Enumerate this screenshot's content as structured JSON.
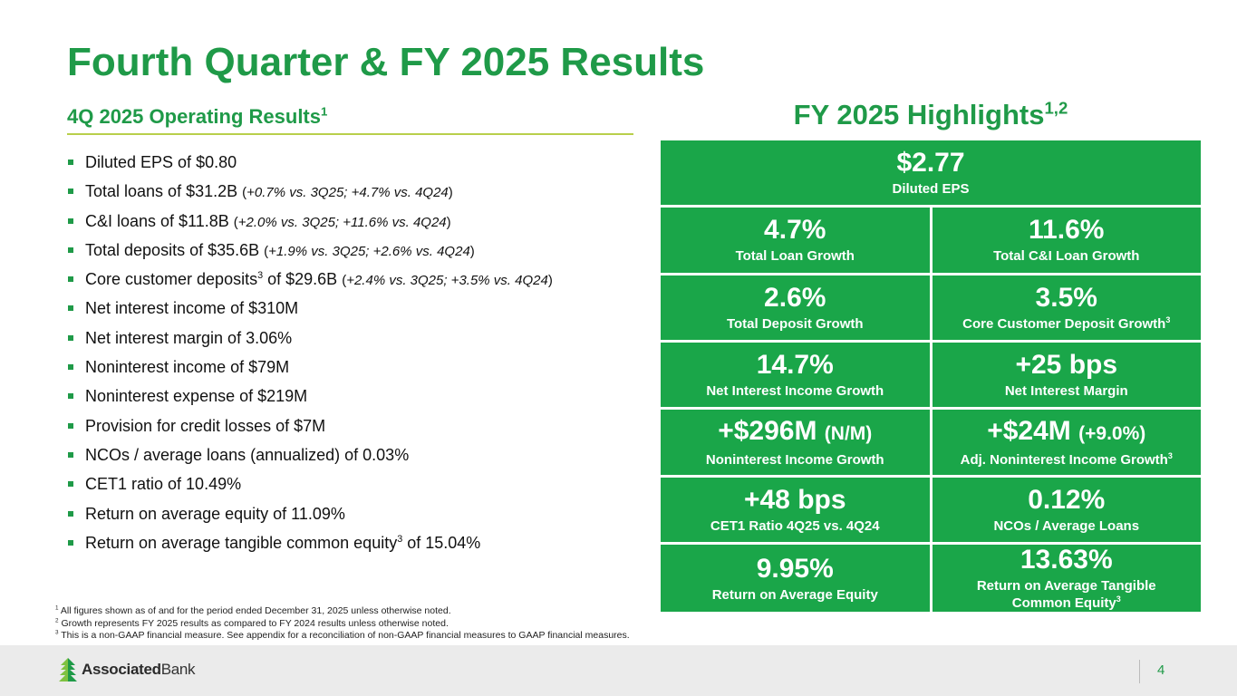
{
  "title": "Fourth Quarter & FY 2025 Results",
  "left": {
    "heading": "4Q 2025 Operating Results",
    "heading_sup": "1",
    "bullets": [
      {
        "main": "Diluted EPS of $0.80"
      },
      {
        "main": "Total loans of $31.2B",
        "open": "(",
        "detail": "+0.7% vs. 3Q25; +4.7% vs. 4Q24",
        "close": ")"
      },
      {
        "main": "C&I loans of $11.8B",
        "open": "(",
        "detail": "+2.0% vs. 3Q25; +11.6% vs. 4Q24",
        "close": ")"
      },
      {
        "main": "Total deposits of $35.6B",
        "open": "(",
        "detail": "+1.9% vs. 3Q25; +2.6% vs. 4Q24",
        "close": ")"
      },
      {
        "pre": "Core customer deposits",
        "sup": "3",
        "main": "of $29.6B",
        "open": "(",
        "detail": "+2.4% vs. 3Q25; +3.5% vs. 4Q24",
        "close": ")"
      },
      {
        "main": "Net interest income of $310M"
      },
      {
        "main": "Net interest margin of 3.06%"
      },
      {
        "main": "Noninterest income of $79M"
      },
      {
        "main": "Noninterest expense of $219M"
      },
      {
        "main": "Provision for credit losses of $7M"
      },
      {
        "main": "NCOs / average loans (annualized) of 0.03%"
      },
      {
        "main": "CET1 ratio of 10.49%"
      },
      {
        "main": "Return on average equity of 11.09%"
      },
      {
        "pre": "Return on average tangible common equity",
        "sup": "3",
        "main": "of 15.04%"
      }
    ]
  },
  "right": {
    "heading": "FY 2025 Highlights",
    "heading_sup": "1,2",
    "cells": [
      {
        "value": "$2.77",
        "label": "Diluted EPS"
      },
      {
        "value": "4.7%",
        "label": "Total Loan Growth"
      },
      {
        "value": "11.6%",
        "label": "Total C&I Loan Growth"
      },
      {
        "value": "2.6%",
        "label": "Total Deposit Growth"
      },
      {
        "value": "3.5%",
        "label": "Core Customer Deposit Growth",
        "sup": "3"
      },
      {
        "value": "14.7%",
        "label": "Net Interest Income Growth"
      },
      {
        "value": "+25 bps",
        "label": "Net Interest Margin"
      },
      {
        "value": "+$296M",
        "paren": "(N/M)",
        "label": "Noninterest Income Growth"
      },
      {
        "value": "+$24M",
        "paren": "(+9.0%)",
        "label": "Adj. Noninterest Income Growth",
        "sup": "3"
      },
      {
        "value": "+48 bps",
        "label": "CET1 Ratio 4Q25 vs. 4Q24"
      },
      {
        "value": "0.12%",
        "label": "NCOs / Average Loans"
      },
      {
        "value": "9.95%",
        "label": "Return on Average Equity"
      },
      {
        "value": "13.63%",
        "label": "Return on Average Tangible Common Equity",
        "sup": "3"
      }
    ]
  },
  "footnotes": [
    {
      "num": "1",
      "text": "All figures shown as of and for the period ended December 31, 2025 unless otherwise noted."
    },
    {
      "num": "2",
      "text": "Growth represents FY 2025 results as compared to FY 2024 results unless otherwise noted."
    },
    {
      "num": "3",
      "text": "This is a non-GAAP financial measure. See appendix for a reconciliation of non-GAAP financial measures to GAAP financial measures."
    }
  ],
  "footer": {
    "logo_bold": "Associated",
    "logo_light": "Bank",
    "page_number": "4"
  },
  "colors": {
    "brand_green": "#1f9a48",
    "tile_green": "#1aa649",
    "rule": "#b8cf4b"
  }
}
